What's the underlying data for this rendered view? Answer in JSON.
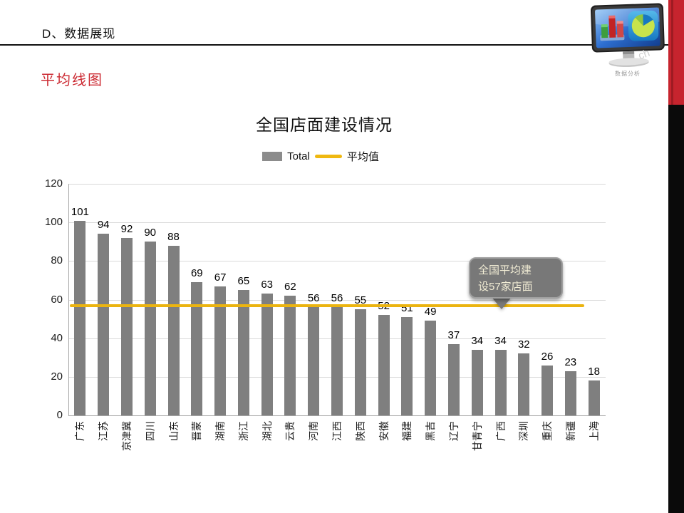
{
  "slide": {
    "header": "D、数据展现",
    "subtitle": "平均线图",
    "logo": {
      "caption": "数据分析",
      "watermark": "ch"
    }
  },
  "colors": {
    "bar": "#7F7F7F",
    "average_line": "#EBB410",
    "subtitle_red": "#CC2B33",
    "side_band_red": "#C6242E",
    "side_band_black": "#0A0A0A",
    "callout_bg": "#787878",
    "callout_text": "#F2EDD5"
  },
  "chart_data": {
    "type": "bar",
    "title": "全国店面建设情况",
    "legend": [
      {
        "label": "Total",
        "type": "bar",
        "color": "#7F7F7F"
      },
      {
        "label": "平均值",
        "type": "line",
        "color": "#EFB810"
      }
    ],
    "legend_position": "top",
    "grid": true,
    "categories": [
      "广东",
      "江苏",
      "京津冀",
      "四川",
      "山东",
      "晋蒙",
      "湖南",
      "浙江",
      "湖北",
      "云贵",
      "河南",
      "江西",
      "陕西",
      "安徽",
      "福建",
      "黑吉",
      "辽宁",
      "甘青宁",
      "广西",
      "深圳",
      "重庆",
      "新疆",
      "上海"
    ],
    "values": [
      101,
      94,
      92,
      90,
      88,
      69,
      67,
      65,
      63,
      62,
      56,
      56,
      55,
      52,
      51,
      49,
      37,
      34,
      34,
      32,
      26,
      23,
      18
    ],
    "y_ticks": [
      0,
      20,
      40,
      60,
      80,
      100,
      120
    ],
    "ylim": [
      0,
      120
    ],
    "xlabel": "",
    "ylabel": "",
    "average_line": {
      "value": 57,
      "color": "#EBB410"
    },
    "callout": {
      "text": "全国平均建设57家店面",
      "lines": [
        "全国平均建",
        "设57家店面"
      ]
    }
  }
}
